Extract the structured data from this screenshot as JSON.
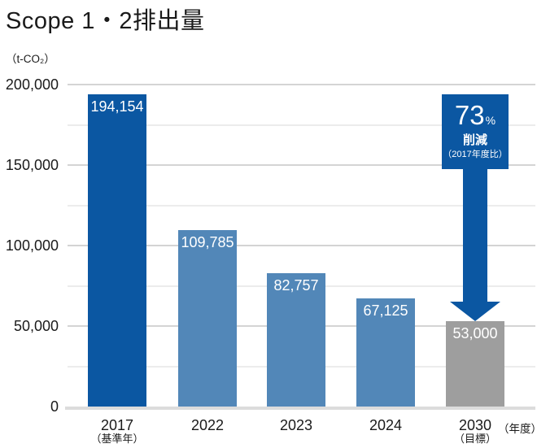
{
  "title": "Scope 1・2排出量",
  "y_axis_unit": "（t-CO₂）",
  "x_axis_unit": "（年度）",
  "annotation": {
    "percent_value": "73",
    "percent_sign": "%",
    "label": "削減",
    "note": "（2017年度比）"
  },
  "colors": {
    "primary_blue": "#0b57a2",
    "secondary_blue": "#5287b8",
    "target_gray": "#9e9e9e",
    "gridline_major": "#d4d4d4",
    "gridline_minor": "#ececec",
    "axis_line": "#dcdcdc",
    "text": "#1a1a1a",
    "bar_label": "#ffffff"
  },
  "chart_data": {
    "type": "bar",
    "title": "Scope 1・2排出量",
    "unit": "t-CO₂",
    "categories": [
      "2017",
      "2022",
      "2023",
      "2024",
      "2030"
    ],
    "category_sublabels": [
      "（基準年）",
      "",
      "",
      "",
      "（目標）"
    ],
    "values": [
      194154,
      109785,
      82757,
      67125,
      53000
    ],
    "value_labels": [
      "194,154",
      "109,785",
      "82,757",
      "67,125",
      "53,000"
    ],
    "bar_color_keys": [
      "primary_blue",
      "secondary_blue",
      "secondary_blue",
      "secondary_blue",
      "target_gray"
    ],
    "xlabel": "（年度）",
    "ylabel": "（t-CO₂）",
    "ylim": [
      0,
      200000
    ],
    "ytick_interval_labeled": 50000,
    "ytick_interval_minor": 25000,
    "ytick_labels": [
      "0",
      "50,000",
      "100,000",
      "150,000",
      "200,000"
    ],
    "grid": "horizontal",
    "legend": "none",
    "annotation_text": "73%削減（2017年度比）"
  }
}
